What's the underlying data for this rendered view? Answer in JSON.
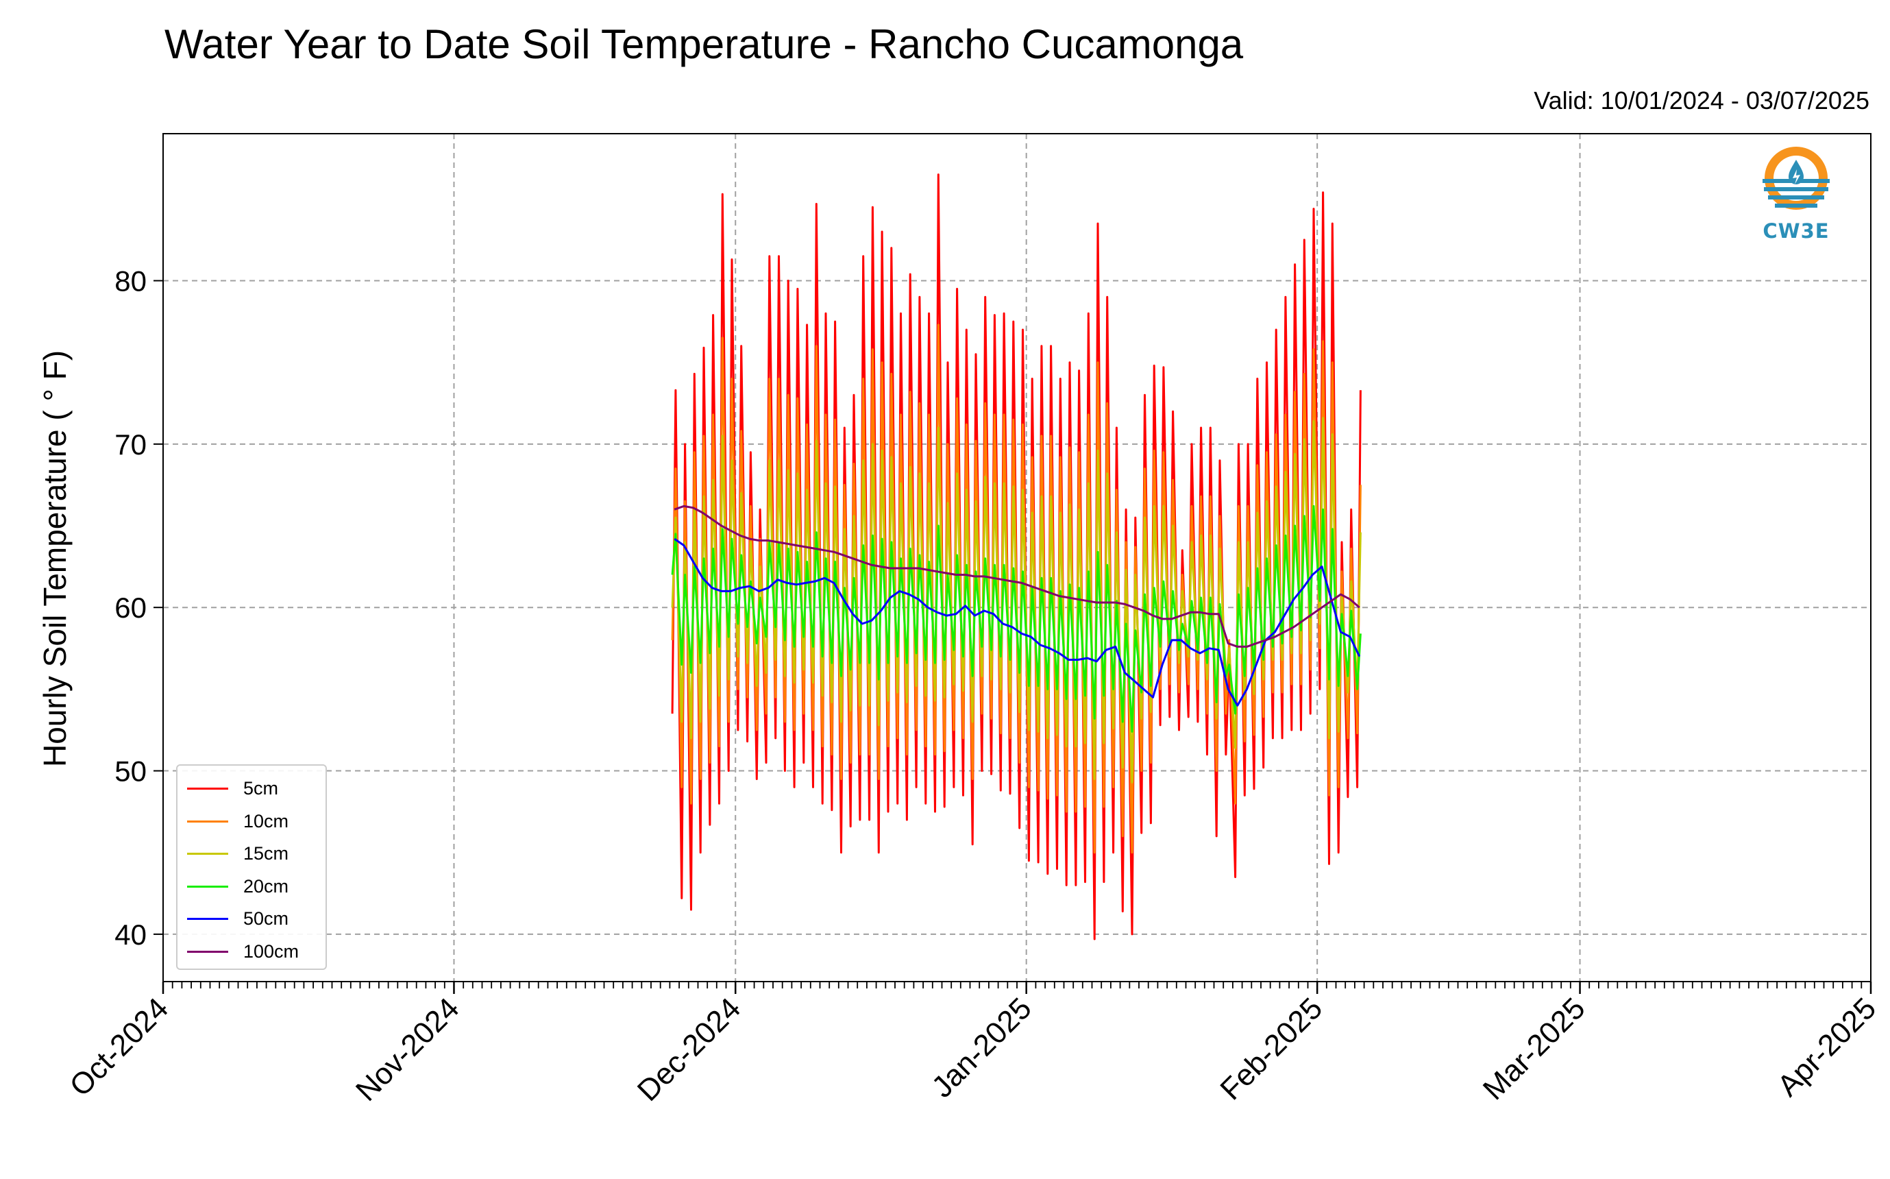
{
  "chart_data": {
    "type": "line",
    "title": "Water Year to Date Soil Temperature - Rancho Cucamonga",
    "subtitle": "Valid: 10/01/2024 - 03/07/2025",
    "xlabel": "",
    "ylabel": "Hourly Soil Temperature ($^\\circ$F)",
    "ylabel_display": "Hourly Soil Temperature ( ° F)",
    "x_axis": {
      "type": "date",
      "range": [
        "2024-10-01",
        "2025-04-01"
      ],
      "tick_labels": [
        "Oct-2024",
        "Nov-2024",
        "Dec-2024",
        "Jan-2025",
        "Feb-2025",
        "Mar-2025",
        "Apr-2025"
      ],
      "tick_dates": [
        "2024-10-01",
        "2024-11-01",
        "2024-12-01",
        "2025-01-01",
        "2025-02-01",
        "2025-03-01",
        "2025-04-01"
      ]
    },
    "y_axis": {
      "range": [
        37.1,
        89.0
      ],
      "ticks": [
        40,
        50,
        60,
        70,
        80
      ]
    },
    "grid": true,
    "legend_position": "lower-left",
    "series": [
      {
        "name": "5cm",
        "color": "#ff0000",
        "daily_min": [
          53.5,
          42.2,
          41.5,
          45.0,
          46.7,
          48.0,
          50.0,
          52.5,
          51.8,
          49.5,
          50.5,
          52.0,
          50.0,
          49.0,
          50.5,
          49.0,
          48.0,
          47.6,
          45.0,
          46.6,
          47.0,
          47.0,
          45.0,
          47.5,
          48.0,
          47.0,
          49.0,
          48.0,
          47.5,
          47.8,
          49.0,
          48.5,
          45.5,
          50.0,
          49.8,
          48.8,
          48.6,
          46.5,
          44.5,
          44.4,
          43.7,
          44.0,
          43.0,
          43.0,
          43.2,
          39.7,
          43.2,
          45.0,
          41.4,
          40.0,
          46.2,
          46.8,
          52.8,
          53.3,
          52.5,
          53.3,
          53.0,
          51.0,
          46.0,
          51.0,
          43.5,
          48.5,
          48.9,
          50.2,
          52.0,
          52.0,
          52.5,
          52.5,
          53.5,
          55.0,
          44.3,
          45.0,
          48.4,
          49.0
        ],
        "daily_max": [
          73.3,
          70.0,
          74.3,
          75.9,
          77.9,
          85.3,
          81.3,
          76.0,
          69.5,
          66.0,
          81.5,
          81.5,
          80.0,
          79.5,
          77.3,
          84.7,
          78.0,
          77.5,
          71.0,
          73.0,
          81.5,
          84.5,
          83.0,
          82.0,
          78.0,
          80.4,
          79.0,
          78.0,
          86.5,
          75.0,
          79.5,
          77.0,
          75.5,
          79.0,
          77.9,
          78.0,
          77.5,
          77.0,
          74.0,
          76.0,
          76.0,
          74.0,
          75.0,
          74.5,
          78.0,
          83.5,
          79.0,
          71.0,
          66.0,
          65.5,
          73.0,
          74.8,
          74.7,
          72.0,
          63.5,
          70.0,
          71.0,
          71.0,
          69.0,
          57.0,
          70.0,
          70.0,
          74.0,
          75.0,
          77.0,
          79.0,
          81.0,
          82.5,
          84.4,
          85.4,
          83.5,
          64.0,
          66.0,
          73.3
        ]
      },
      {
        "name": "10cm",
        "color": "#ff8000",
        "daily_min": [
          58.0,
          49.0,
          48.0,
          49.5,
          50.5,
          51.5,
          53.0,
          55.0,
          54.5,
          52.5,
          53.5,
          54.5,
          53.0,
          52.5,
          53.5,
          52.5,
          51.5,
          51.0,
          49.5,
          50.5,
          51.0,
          51.0,
          49.5,
          51.5,
          52.0,
          51.0,
          52.5,
          51.5,
          51.0,
          51.2,
          52.5,
          52.0,
          49.5,
          53.5,
          53.2,
          52.3,
          52.0,
          50.5,
          49.0,
          48.8,
          48.3,
          48.5,
          47.5,
          47.5,
          47.8,
          45.0,
          47.8,
          49.0,
          46.0,
          45.0,
          50.0,
          50.5,
          55.0,
          55.3,
          54.8,
          55.3,
          55.0,
          53.5,
          50.0,
          53.5,
          48.0,
          51.8,
          52.2,
          53.3,
          54.8,
          54.8,
          55.3,
          55.3,
          56.2,
          57.5,
          48.5,
          49.0,
          52.0,
          52.3
        ],
        "daily_max": [
          68.5,
          66.5,
          69.5,
          70.5,
          71.8,
          76.5,
          74.0,
          70.8,
          66.2,
          64.2,
          74.0,
          74.0,
          73.0,
          72.8,
          71.2,
          76.0,
          71.8,
          71.5,
          67.5,
          68.8,
          74.0,
          75.8,
          75.0,
          74.3,
          71.8,
          73.2,
          72.5,
          71.8,
          77.3,
          70.0,
          72.8,
          71.2,
          70.2,
          72.5,
          71.8,
          71.8,
          71.5,
          71.2,
          69.2,
          70.5,
          70.5,
          69.2,
          69.8,
          69.5,
          71.8,
          75.0,
          72.5,
          67.2,
          64.0,
          63.7,
          68.5,
          69.6,
          69.5,
          67.8,
          62.0,
          66.2,
          66.8,
          66.8,
          65.6,
          58.0,
          66.2,
          66.2,
          68.7,
          69.5,
          70.6,
          71.8,
          73.2,
          74.3,
          75.8,
          76.3,
          75.0,
          62.2,
          63.6,
          67.5
        ]
      },
      {
        "name": "15cm",
        "color": "#c8c800",
        "daily_min": [
          60.0,
          53.0,
          52.0,
          53.0,
          53.8,
          54.6,
          55.6,
          57.0,
          56.6,
          55.2,
          56.0,
          56.8,
          55.8,
          55.4,
          56.2,
          55.4,
          54.6,
          54.2,
          53.0,
          53.7,
          54.0,
          54.0,
          52.8,
          54.3,
          54.8,
          54.2,
          55.2,
          54.6,
          54.3,
          54.5,
          55.3,
          54.9,
          53.0,
          55.8,
          55.6,
          55.0,
          54.8,
          53.6,
          52.5,
          52.4,
          52.0,
          52.2,
          51.5,
          51.5,
          51.7,
          49.5,
          51.7,
          52.6,
          50.2,
          49.3,
          53.2,
          53.6,
          56.8,
          57.0,
          56.6,
          57.0,
          56.8,
          55.6,
          53.2,
          55.6,
          51.4,
          54.4,
          54.7,
          55.6,
          56.8,
          56.8,
          57.2,
          57.2,
          58.0,
          59.0,
          52.0,
          52.4,
          54.8,
          55.0
        ],
        "daily_max": [
          65.5,
          64.0,
          66.0,
          66.8,
          67.8,
          70.5,
          69.0,
          67.0,
          64.0,
          62.5,
          69.0,
          69.0,
          68.4,
          68.2,
          67.2,
          70.2,
          67.6,
          67.4,
          64.8,
          65.6,
          69.0,
          70.0,
          69.6,
          69.2,
          67.6,
          68.6,
          68.2,
          67.6,
          71.0,
          66.4,
          68.2,
          67.2,
          66.5,
          68.0,
          67.6,
          67.6,
          67.4,
          67.2,
          65.8,
          66.8,
          66.8,
          65.8,
          66.3,
          66.0,
          67.6,
          69.6,
          68.2,
          64.6,
          62.3,
          62.0,
          65.5,
          66.2,
          66.2,
          65.0,
          61.0,
          64.0,
          64.4,
          64.4,
          63.6,
          57.5,
          64.0,
          64.0,
          65.8,
          66.5,
          67.4,
          68.3,
          69.4,
          70.3,
          71.4,
          71.6,
          70.6,
          60.6,
          61.6,
          64.6
        ]
      },
      {
        "name": "20cm",
        "color": "#19ee00",
        "daily_min": [
          62.0,
          56.5,
          56.0,
          56.6,
          57.2,
          57.6,
          58.2,
          59.0,
          58.8,
          57.8,
          58.2,
          58.8,
          58.0,
          57.6,
          58.2,
          57.6,
          57.0,
          56.6,
          55.8,
          56.2,
          56.6,
          56.6,
          55.6,
          56.6,
          57.0,
          56.6,
          57.2,
          56.8,
          56.6,
          56.8,
          57.4,
          57.0,
          55.8,
          57.6,
          57.4,
          57.0,
          56.8,
          56.0,
          55.2,
          55.2,
          55.0,
          55.0,
          54.4,
          54.4,
          54.6,
          53.2,
          54.6,
          55.0,
          53.0,
          52.4,
          54.8,
          55.2,
          57.6,
          57.8,
          57.4,
          57.6,
          57.4,
          56.6,
          54.2,
          55.8,
          53.5,
          55.8,
          56.2,
          56.8,
          57.6,
          57.8,
          58.2,
          58.6,
          59.4,
          60.4,
          55.6,
          55.2,
          55.8,
          55.0
        ],
        "daily_max": [
          64.5,
          62.0,
          62.5,
          63.0,
          63.6,
          64.8,
          64.2,
          63.2,
          61.6,
          60.6,
          64.0,
          64.0,
          63.6,
          63.4,
          62.8,
          64.6,
          63.0,
          62.8,
          61.2,
          61.8,
          63.8,
          64.4,
          64.2,
          64.0,
          63.0,
          63.6,
          63.2,
          62.8,
          65.0,
          62.0,
          63.2,
          62.6,
          62.2,
          63.0,
          62.6,
          62.6,
          62.4,
          62.2,
          61.2,
          61.8,
          61.8,
          61.0,
          61.4,
          61.2,
          62.2,
          63.4,
          62.6,
          60.4,
          59.0,
          58.6,
          60.8,
          61.2,
          61.6,
          61.0,
          59.0,
          60.4,
          60.6,
          60.6,
          60.2,
          56.5,
          60.8,
          61.2,
          62.4,
          63.0,
          63.8,
          64.4,
          65.0,
          65.6,
          66.2,
          66.0,
          64.8,
          59.6,
          59.8,
          58.4
        ]
      },
      {
        "name": "50cm",
        "color": "#0000ff",
        "daily_mean": [
          64.2,
          63.8,
          62.8,
          61.8,
          61.2,
          61.0,
          61.0,
          61.2,
          61.3,
          61.0,
          61.2,
          61.7,
          61.5,
          61.4,
          61.5,
          61.6,
          61.8,
          61.5,
          60.5,
          59.6,
          59.0,
          59.2,
          59.8,
          60.6,
          61.0,
          60.8,
          60.5,
          60.0,
          59.7,
          59.5,
          59.6,
          60.1,
          59.5,
          59.8,
          59.6,
          59.0,
          58.8,
          58.4,
          58.2,
          57.7,
          57.5,
          57.2,
          56.8,
          56.8,
          56.9,
          56.7,
          57.4,
          57.6,
          56.0,
          55.5,
          55.0,
          54.5,
          56.5,
          58.0,
          58.0,
          57.5,
          57.2,
          57.5,
          57.4,
          55.0,
          54.0,
          55.0,
          56.5,
          58.0,
          58.5,
          59.5,
          60.5,
          61.2,
          62.0,
          62.5,
          60.5,
          58.5,
          58.2,
          57.0
        ]
      },
      {
        "name": "100cm",
        "color": "#80006b",
        "daily_mean": [
          66.0,
          66.2,
          66.1,
          65.8,
          65.4,
          65.0,
          64.7,
          64.4,
          64.2,
          64.1,
          64.1,
          64.0,
          63.9,
          63.8,
          63.7,
          63.6,
          63.5,
          63.4,
          63.2,
          63.0,
          62.8,
          62.6,
          62.5,
          62.4,
          62.4,
          62.4,
          62.4,
          62.3,
          62.2,
          62.1,
          62.0,
          62.0,
          61.9,
          61.9,
          61.8,
          61.7,
          61.6,
          61.5,
          61.3,
          61.1,
          60.9,
          60.7,
          60.6,
          60.5,
          60.4,
          60.3,
          60.3,
          60.3,
          60.2,
          60.0,
          59.8,
          59.5,
          59.3,
          59.3,
          59.5,
          59.7,
          59.7,
          59.6,
          59.6,
          57.8,
          57.6,
          57.6,
          57.8,
          58.0,
          58.2,
          58.5,
          58.8,
          59.2,
          59.6,
          60.0,
          60.4,
          60.8,
          60.5,
          60.0
        ]
      }
    ]
  },
  "logo": {
    "text": "CW3E",
    "color": "#2b8fb8",
    "accent": "#f7941d"
  }
}
